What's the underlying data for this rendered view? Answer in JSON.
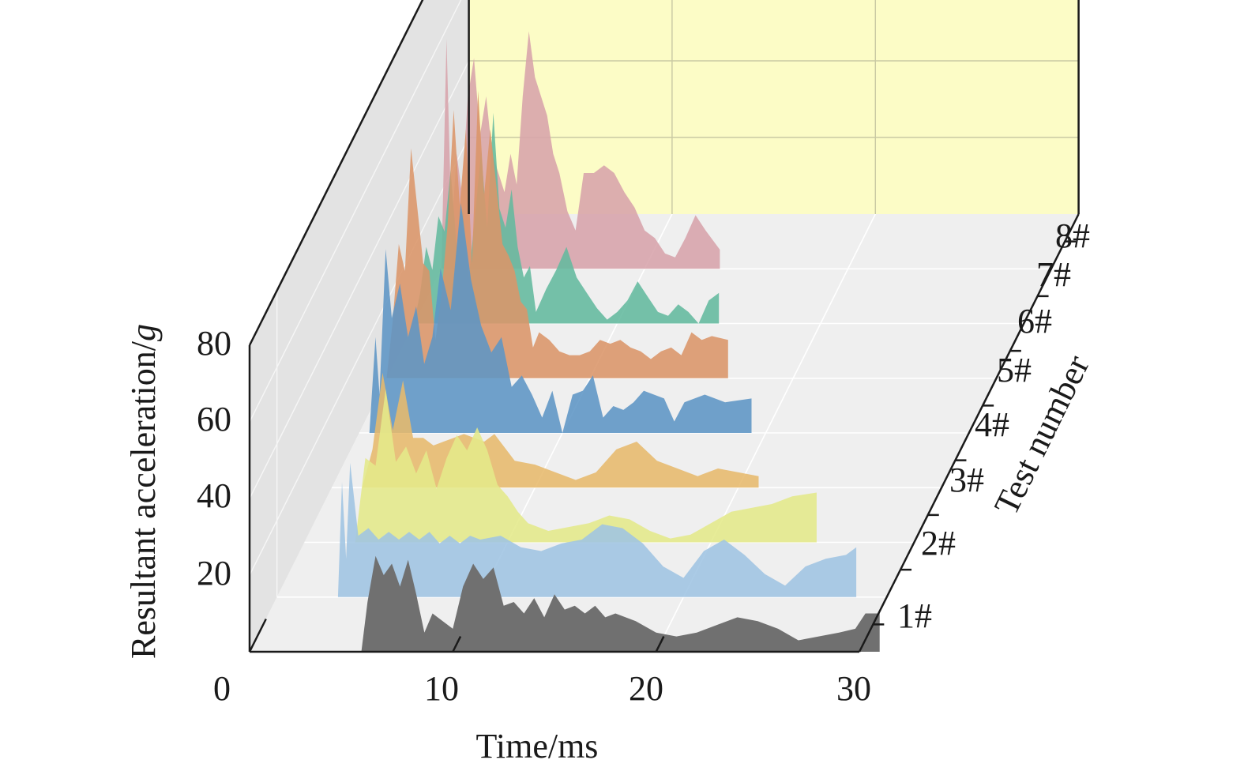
{
  "chart_data": {
    "type": "area",
    "title": "",
    "xlabel": "Time/ms",
    "ylabel_text": "Resultant acceleration/",
    "ylabel_italic": "g",
    "zlabel": "Test number",
    "xlim": [
      0,
      30
    ],
    "ylim": [
      0,
      80
    ],
    "x_ticks": [
      "0",
      "10",
      "20",
      "30"
    ],
    "y_ticks": [
      "20",
      "40",
      "60",
      "80"
    ],
    "grid": true,
    "colors": {
      "floor": "#efefef",
      "side_wall": "#e3e3e3",
      "back_wall": "#fcfcc6",
      "wall_grid": "#ffffff",
      "back_grid": "#c9c9a3"
    },
    "series": [
      {
        "name": "1#",
        "color": "#707070",
        "start": 5.5,
        "end": 31.0,
        "x": [
          5.5,
          5.8,
          6.2,
          6.6,
          7.0,
          7.4,
          7.8,
          8.2,
          8.6,
          9.0,
          9.5,
          10.0,
          10.5,
          11.0,
          11.5,
          12.0,
          12.5,
          13.0,
          13.5,
          14.0,
          14.5,
          15.0,
          15.5,
          16.0,
          16.5,
          17.0,
          17.5,
          18.0,
          19.0,
          20.0,
          21.0,
          22.0,
          23.0,
          24.0,
          25.0,
          26.0,
          27.0,
          28.0,
          29.0,
          29.8,
          30.3,
          31.0
        ],
        "y": [
          0,
          13,
          25,
          20,
          23,
          17,
          24,
          15,
          5,
          10,
          8,
          6,
          17,
          23,
          19,
          22,
          12,
          13,
          10,
          14,
          9,
          15,
          11,
          12,
          10,
          12,
          9,
          10,
          8,
          5,
          4,
          5,
          7,
          9,
          8,
          6,
          3,
          4,
          5,
          6,
          10,
          10
        ]
      },
      {
        "name": "2#",
        "color": "#9fc4e3",
        "start": 3.0,
        "end": 28.5,
        "x": [
          3.0,
          3.2,
          3.4,
          3.6,
          4.0,
          4.5,
          5.0,
          5.5,
          6.0,
          6.5,
          7.0,
          7.5,
          8.0,
          8.5,
          9.0,
          9.5,
          10.0,
          11.0,
          12.0,
          13.0,
          14.0,
          15.0,
          16.0,
          17.0,
          18.0,
          19.0,
          20.0,
          21.0,
          22.0,
          23.0,
          24.0,
          25.0,
          26.0,
          27.0,
          28.0,
          28.5
        ],
        "y": [
          0,
          30,
          10,
          35,
          16,
          18,
          15,
          17,
          15,
          17,
          15,
          17,
          14,
          16,
          14,
          16,
          15,
          16,
          13,
          12,
          14,
          15,
          19,
          18,
          14,
          8,
          5,
          12,
          15,
          11,
          6,
          3,
          8,
          10,
          11,
          13
        ]
      },
      {
        "name": "3#",
        "color": "#e4e98a",
        "start": 2.5,
        "end": 25.2,
        "x": [
          2.5,
          3.0,
          3.5,
          4.0,
          4.5,
          5.0,
          5.5,
          6.0,
          6.5,
          7.0,
          7.5,
          8.0,
          8.5,
          9.0,
          9.5,
          10.0,
          10.5,
          11.0,
          12.0,
          13.0,
          14.0,
          15.0,
          16.0,
          17.0,
          18.0,
          19.0,
          20.0,
          21.0,
          22.0,
          23.0,
          24.0,
          25.2
        ],
        "y": [
          0,
          22,
          20,
          40,
          21,
          25,
          18,
          24,
          14,
          22,
          28,
          24,
          30,
          24,
          15,
          12,
          8,
          5,
          3,
          4,
          5,
          7,
          6,
          3,
          1,
          2,
          5,
          8,
          9,
          10,
          12,
          13
        ]
      },
      {
        "name": "4#",
        "color": "#e7ba6c",
        "start": 1.5,
        "end": 21.0,
        "x": [
          1.5,
          2.0,
          2.5,
          3.0,
          3.5,
          4.0,
          4.5,
          5.0,
          5.5,
          6.0,
          6.5,
          7.0,
          7.5,
          8.0,
          9.0,
          10.0,
          11.0,
          12.0,
          13.0,
          14.0,
          15.0,
          16.0,
          17.0,
          18.0,
          19.0,
          20.0,
          21.0
        ],
        "y": [
          0,
          10,
          30,
          15,
          28,
          13,
          13,
          11,
          12,
          13,
          14,
          13,
          12,
          14,
          7,
          6,
          4,
          2,
          4,
          10,
          12,
          7,
          5,
          3,
          5,
          4,
          3
        ]
      },
      {
        "name": "5#",
        "color": "#5d95c5",
        "start": 0.5,
        "end": 19.3,
        "x": [
          0.5,
          0.8,
          1.0,
          1.3,
          1.6,
          2.0,
          2.4,
          2.8,
          3.2,
          3.6,
          4.0,
          4.5,
          5.0,
          5.5,
          6.0,
          6.5,
          7.0,
          7.5,
          8.0,
          8.5,
          9.0,
          9.5,
          10.0,
          10.5,
          11.0,
          11.5,
          12.0,
          12.5,
          13.0,
          13.5,
          14.0,
          15.0,
          15.5,
          16.0,
          17.0,
          18.0,
          19.3
        ],
        "y": [
          0,
          25,
          10,
          48,
          30,
          39,
          25,
          33,
          18,
          25,
          43,
          32,
          60,
          40,
          28,
          21,
          25,
          12,
          15,
          10,
          4,
          11,
          0,
          10,
          11,
          15,
          4,
          7,
          6,
          8,
          11,
          9,
          3,
          8,
          10,
          8,
          9
        ]
      },
      {
        "name": "6#",
        "color": "#db9569",
        "start": 0.0,
        "end": 16.8,
        "x": [
          0.0,
          0.3,
          0.6,
          0.9,
          1.2,
          1.5,
          1.8,
          2.1,
          2.4,
          2.7,
          3.0,
          3.3,
          3.6,
          3.9,
          4.2,
          4.5,
          4.8,
          5.1,
          5.4,
          5.7,
          6.0,
          6.3,
          6.6,
          6.9,
          7.2,
          7.5,
          8.0,
          8.5,
          9.0,
          9.5,
          10.0,
          10.5,
          11.0,
          11.5,
          12.0,
          12.5,
          13.0,
          13.5,
          14.0,
          14.5,
          15.0,
          15.5,
          16.0,
          16.8
        ],
        "y": [
          0,
          15,
          35,
          28,
          60,
          45,
          30,
          28,
          10,
          22,
          40,
          70,
          45,
          65,
          30,
          75,
          48,
          65,
          50,
          35,
          32,
          28,
          20,
          18,
          8,
          12,
          10,
          7,
          6,
          6,
          7,
          10,
          9,
          10,
          8,
          7,
          5,
          7,
          8,
          6,
          12,
          10,
          11,
          10
        ]
      },
      {
        "name": "7#",
        "color": "#63b99e",
        "start": 0.0,
        "end": 15.0,
        "x": [
          0.0,
          0.3,
          0.6,
          0.9,
          1.2,
          1.5,
          1.8,
          2.1,
          2.4,
          2.7,
          3.0,
          3.3,
          3.6,
          3.9,
          4.2,
          4.5,
          4.8,
          5.1,
          5.4,
          5.7,
          6.0,
          6.5,
          7.0,
          7.5,
          8.0,
          8.5,
          9.0,
          9.5,
          10.0,
          10.5,
          11.0,
          11.5,
          12.0,
          12.5,
          13.0,
          13.5,
          14.0,
          14.5,
          15.0
        ],
        "y": [
          0,
          8,
          20,
          14,
          28,
          24,
          40,
          20,
          30,
          12,
          28,
          45,
          25,
          55,
          30,
          25,
          35,
          20,
          12,
          15,
          3,
          9,
          14,
          20,
          12,
          8,
          4,
          1,
          3,
          6,
          11,
          7,
          3,
          2,
          5,
          3,
          0,
          6,
          8
        ]
      },
      {
        "name": "8#",
        "color": "#d7a3ab",
        "start": 0.0,
        "end": 13.7,
        "x": [
          0.0,
          0.25,
          0.5,
          0.75,
          1.0,
          1.3,
          1.6,
          1.9,
          2.2,
          2.5,
          2.8,
          3.1,
          3.4,
          3.7,
          4.0,
          4.3,
          4.6,
          4.9,
          5.2,
          5.5,
          5.8,
          6.2,
          6.6,
          7.0,
          7.5,
          8.0,
          8.5,
          9.0,
          9.5,
          10.0,
          10.5,
          11.0,
          11.5,
          12.0,
          12.5,
          13.0,
          13.7
        ],
        "y": [
          0,
          60,
          10,
          30,
          20,
          45,
          55,
          35,
          45,
          30,
          25,
          20,
          30,
          22,
          45,
          62,
          50,
          45,
          40,
          30,
          25,
          15,
          10,
          25,
          25,
          27,
          25,
          20,
          16,
          10,
          8,
          4,
          3,
          8,
          14,
          10,
          5
        ]
      }
    ]
  }
}
